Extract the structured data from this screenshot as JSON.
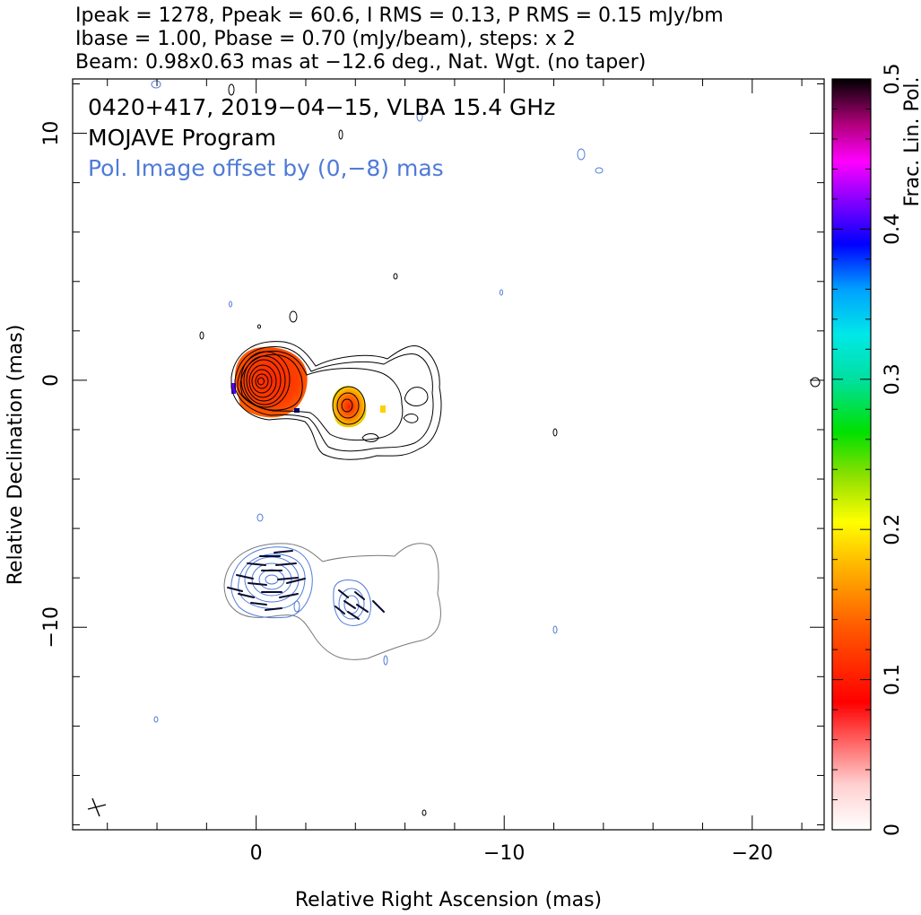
{
  "header": {
    "line1": "Ipeak = 1278, Ppeak = 60.6, I RMS = 0.13, P RMS = 0.15 mJy/bm",
    "line2": "Ibase = 1.00, Pbase = 0.70 (mJy/beam), steps: x 2",
    "line3": "Beam: 0.98x0.63 mas at −12.6 deg., Nat. Wgt. (no taper)"
  },
  "annotations": {
    "source_line": "0420+417, 2019−04−15, VLBA 15.4 GHz",
    "program": "MOJAVE Program",
    "pol_offset": "Pol. Image offset by (0,−8) mas"
  },
  "colors": {
    "total_intensity_contour": "#000000",
    "polarization_contour": "#4f7bd8",
    "axis": "#000000"
  },
  "chart_data": {
    "type": "heatmap",
    "xlabel": "Relative Right Ascension (mas)",
    "ylabel": "Relative Declination (mas)",
    "xlim": [
      7.4,
      -22.9
    ],
    "ylim": [
      -18.2,
      12.2
    ],
    "x_ticks": [
      0,
      -10,
      -20
    ],
    "x_tick_labels": [
      "0",
      "−10",
      "−20"
    ],
    "y_ticks": [
      10,
      0,
      -10
    ],
    "y_tick_labels": [
      "10",
      "0",
      "−10"
    ],
    "pol_offset_mas": [
      0,
      -8
    ],
    "colorbar": {
      "label": "Frac. Lin. Pol.",
      "range": [
        0,
        0.5
      ],
      "ticks": [
        0,
        0.1,
        0.2,
        0.3,
        0.4,
        0.5
      ],
      "tick_labels": [
        "0",
        "0.1",
        "0.2",
        "0.3",
        "0.4",
        "0.5"
      ]
    },
    "components": [
      {
        "x": 0.0,
        "y": 0.0,
        "peak_mJy": 1278
      },
      {
        "x": -3.5,
        "y": -1.0
      }
    ]
  }
}
